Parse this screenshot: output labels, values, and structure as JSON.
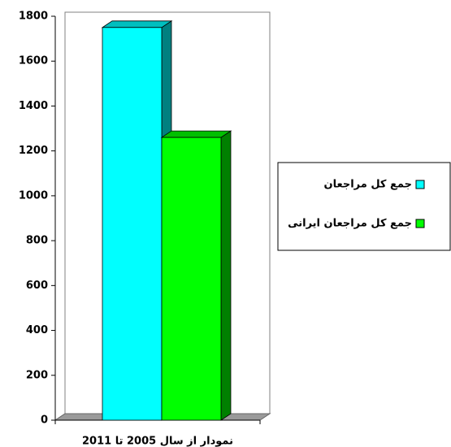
{
  "chart_data": {
    "type": "bar3d",
    "categories": [
      "نمودار از سال 2005 تا 2011"
    ],
    "series": [
      {
        "name": "جمع کل مراجعان",
        "color": "#00ffff",
        "values": [
          1750
        ]
      },
      {
        "name": "جمع کل مراجعان ایرانی",
        "color": "#00ff00",
        "values": [
          1260
        ]
      }
    ],
    "ylim": [
      0,
      1800
    ],
    "yticks": [
      0,
      200,
      400,
      600,
      800,
      1000,
      1200,
      1400,
      1600,
      1800
    ],
    "legend": "right"
  }
}
